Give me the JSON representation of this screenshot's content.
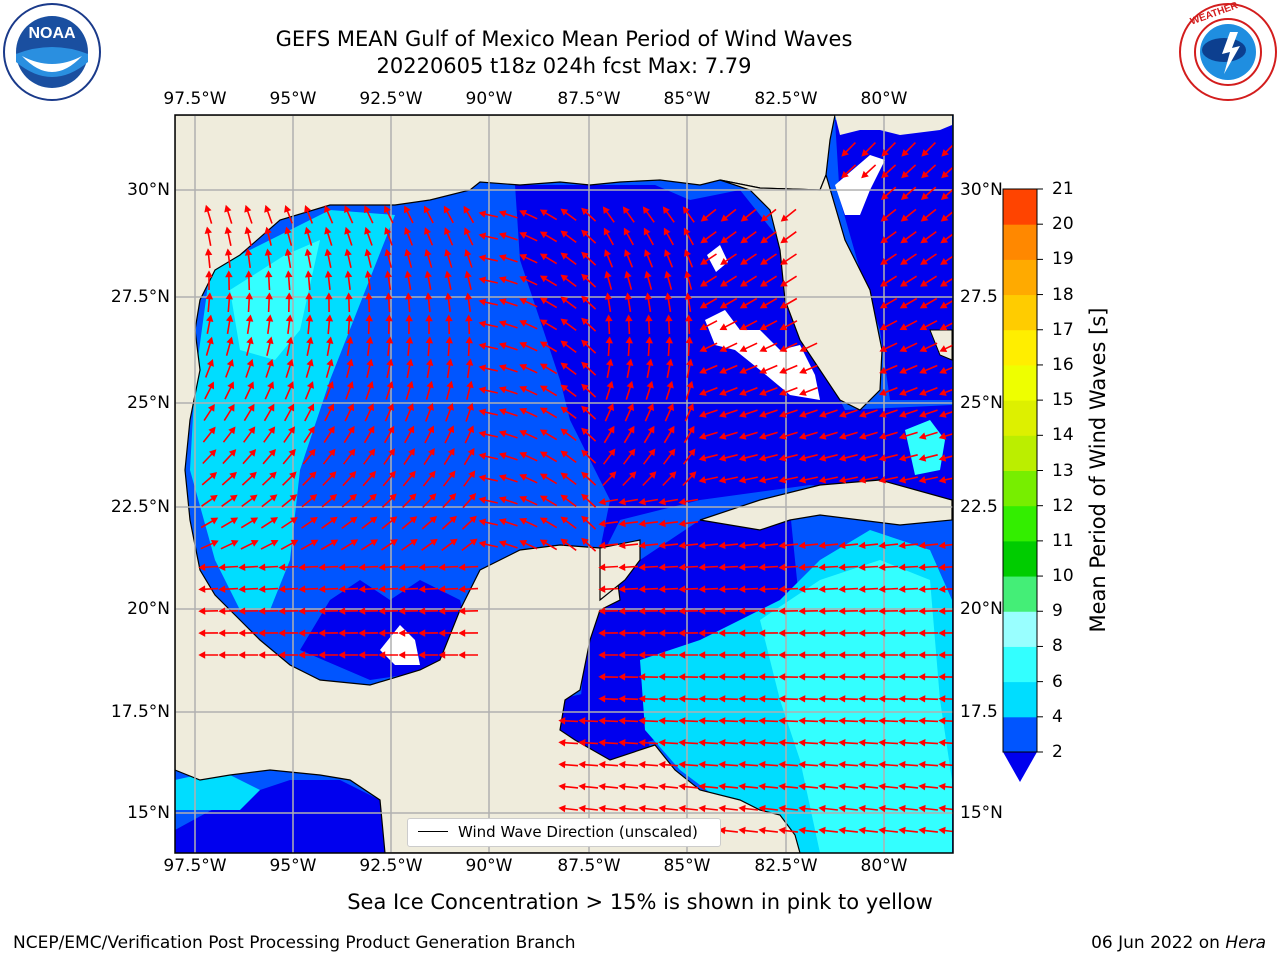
{
  "header": {
    "title_line1": "GEFS MEAN Gulf of Mexico Mean Period of Wind Waves",
    "title_line2": "20220605 t18z 024h fcst   Max: 7.79"
  },
  "logos": {
    "left": {
      "name": "noaa-logo",
      "text": "NOAA",
      "ring_text": "NATIONAL OCEANIC AND ATMOSPHERIC ADMINISTRATION · U.S. DEPARTMENT OF COMMERCE"
    },
    "right": {
      "name": "nws-logo",
      "ring_text": "NATIONAL WEATHER SERVICE"
    }
  },
  "map": {
    "lon_labels": [
      "97.5°W",
      "95°W",
      "92.5°W",
      "90°W",
      "87.5°W",
      "85°W",
      "82.5°W",
      "80°W"
    ],
    "lat_labels_left": [
      "30°N",
      "27.5°N",
      "25°N",
      "22.5°N",
      "20°N",
      "17.5°N",
      "15°N"
    ],
    "lat_labels_right": [
      "30°N",
      "27.5",
      "25°N",
      "22.5",
      "20°N",
      "17.5",
      "15°N"
    ],
    "land_color": "#efecdc",
    "vector_color": "#ff0000"
  },
  "legend": {
    "label": "Wind Wave Direction (unscaled)"
  },
  "colorbar": {
    "label": "Mean Period of Wind Waves [s]",
    "tick_labels": [
      "2",
      "4",
      "6",
      "8",
      "9",
      "10",
      "11",
      "12",
      "13",
      "14",
      "15",
      "16",
      "17",
      "18",
      "19",
      "20",
      "21"
    ],
    "colors": [
      "#0055ff",
      "#00ddff",
      "#33ffff",
      "#99ffff",
      "#44ee77",
      "#00cc00",
      "#33ee00",
      "#77ee00",
      "#bbee00",
      "#ddf000",
      "#eeff00",
      "#ffee00",
      "#ffcc00",
      "#ffaa00",
      "#ff8800",
      "#ff4400",
      "#ff1a00",
      "#ff0000"
    ],
    "under_color": "#0000ee"
  },
  "notes": {
    "sea_ice": "Sea Ice Concentration > 15% is shown in pink to yellow",
    "producer": "NCEP/EMC/Verification Post Processing Product Generation Branch",
    "date_prefix": "06 Jun 2022 on ",
    "machine": "Hera"
  }
}
